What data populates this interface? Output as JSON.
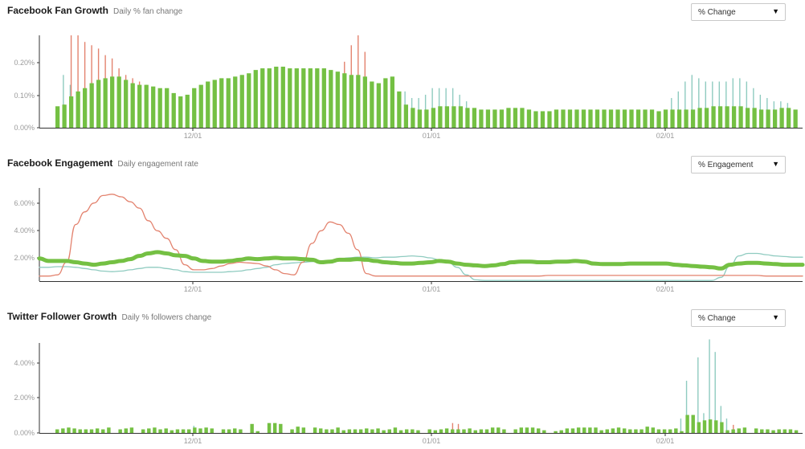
{
  "panels": [
    {
      "title": "Facebook Fan Growth",
      "subtitle": "Daily % fan change",
      "dropdown": "% Change"
    },
    {
      "title": "Facebook Engagement",
      "subtitle": "Daily engagement rate",
      "dropdown": "% Engagement"
    },
    {
      "title": "Twitter Follower Growth",
      "subtitle": "Daily % followers change",
      "dropdown": "% Change"
    }
  ],
  "icons": {
    "dropdown_arrow": "triangle-down-icon"
  },
  "colors": {
    "primary": "#74c043",
    "secondary": "#e3836f",
    "tertiary": "#8fcbc0",
    "axis": "#333333",
    "label": "#9a9a9a"
  },
  "chart_data": [
    {
      "type": "bar",
      "x_start": "11/03",
      "x_ticks": [
        "12/01",
        "01/01",
        "02/01"
      ],
      "y_ticks": [
        "0.00%",
        "0.10%",
        "0.20%"
      ],
      "ylim": [
        0,
        0.28
      ],
      "grid": false,
      "series": [
        {
          "values": [
            0.065,
            0.07,
            0.095,
            0.11,
            0.12,
            0.135,
            0.145,
            0.15,
            0.155,
            0.155,
            0.145,
            0.135,
            0.13,
            0.13,
            0.125,
            0.12,
            0.12,
            0.105,
            0.095,
            0.1,
            0.12,
            0.13,
            0.14,
            0.145,
            0.15,
            0.15,
            0.155,
            0.16,
            0.165,
            0.175,
            0.18,
            0.18,
            0.185,
            0.185,
            0.18,
            0.18,
            0.18,
            0.18,
            0.18,
            0.18,
            0.175,
            0.17,
            0.165,
            0.16,
            0.16,
            0.155,
            0.14,
            0.135,
            0.15,
            0.155,
            0.11,
            0.07,
            0.06,
            0.055,
            0.055,
            0.06,
            0.065,
            0.065,
            0.065,
            0.065,
            0.06,
            0.06,
            0.055,
            0.055,
            0.055,
            0.055,
            0.06,
            0.06,
            0.06,
            0.055,
            0.05,
            0.05,
            0.05,
            0.055,
            0.055,
            0.055,
            0.055,
            0.055,
            0.055,
            0.055,
            0.055,
            0.055,
            0.055,
            0.055,
            0.055,
            0.055,
            0.055,
            0.055,
            0.05,
            0.055,
            0.055,
            0.055,
            0.055,
            0.055,
            0.06,
            0.06,
            0.065,
            0.065,
            0.065,
            0.065,
            0.065,
            0.06,
            0.06,
            0.055,
            0.055,
            0.055,
            0.06,
            0.06,
            0.055
          ]
        },
        {
          "values": [
            0,
            0.07,
            0.28,
            0.28,
            0.26,
            0.25,
            0.24,
            0.22,
            0.21,
            0.18,
            0.16,
            0.15,
            0.14,
            0.13,
            0,
            0,
            0,
            0,
            0,
            0,
            0,
            0,
            0,
            0,
            0,
            0,
            0,
            0,
            0,
            0,
            0,
            0,
            0,
            0,
            0,
            0,
            0,
            0,
            0,
            0,
            0,
            0,
            0.2,
            0.25,
            0.28,
            0.23,
            0,
            0,
            0,
            0,
            0,
            0,
            0,
            0,
            0,
            0,
            0,
            0,
            0,
            0,
            0,
            0,
            0,
            0,
            0,
            0,
            0,
            0,
            0,
            0,
            0,
            0,
            0,
            0,
            0,
            0,
            0,
            0,
            0,
            0,
            0,
            0,
            0,
            0,
            0,
            0,
            0,
            0,
            0,
            0,
            0,
            0,
            0,
            0,
            0,
            0,
            0,
            0,
            0,
            0,
            0,
            0,
            0,
            0,
            0,
            0,
            0,
            0,
            0,
            0
          ]
        },
        {
          "values": [
            0,
            0.16,
            0.13,
            0,
            0,
            0,
            0,
            0,
            0,
            0,
            0,
            0,
            0,
            0,
            0,
            0,
            0,
            0,
            0,
            0,
            0,
            0,
            0,
            0,
            0,
            0,
            0,
            0,
            0,
            0,
            0,
            0,
            0,
            0,
            0,
            0,
            0,
            0,
            0,
            0,
            0,
            0,
            0,
            0,
            0,
            0,
            0,
            0,
            0,
            0,
            0,
            0.11,
            0.09,
            0.09,
            0.1,
            0.12,
            0.12,
            0.12,
            0.12,
            0.1,
            0.08,
            0,
            0,
            0,
            0,
            0,
            0,
            0,
            0,
            0,
            0,
            0,
            0,
            0,
            0,
            0,
            0,
            0,
            0,
            0,
            0,
            0,
            0,
            0,
            0,
            0,
            0,
            0,
            0,
            0,
            0.09,
            0.11,
            0.14,
            0.16,
            0.15,
            0.14,
            0.14,
            0.14,
            0.14,
            0.15,
            0.15,
            0.14,
            0.12,
            0.1,
            0.09,
            0.08,
            0.08,
            0.075,
            0
          ]
        }
      ]
    },
    {
      "type": "line",
      "x_start": "11/03",
      "x_ticks": [
        "12/01",
        "01/01",
        "02/01"
      ],
      "y_ticks": [
        "2.00%",
        "4.00%",
        "6.00%"
      ],
      "ylim": [
        0,
        7.4
      ],
      "grid": false,
      "series": [
        {
          "values": [
            1.8,
            1.6,
            1.6,
            1.6,
            1.5,
            1.4,
            1.3,
            1.4,
            1.5,
            1.6,
            1.75,
            2.0,
            2.2,
            2.3,
            2.2,
            2.05,
            2.0,
            1.8,
            1.6,
            1.55,
            1.55,
            1.6,
            1.7,
            1.8,
            1.75,
            1.8,
            1.85,
            1.8,
            1.8,
            1.75,
            1.7,
            1.5,
            1.55,
            1.7,
            1.7,
            1.75,
            1.7,
            1.6,
            1.5,
            1.45,
            1.4,
            1.4,
            1.45,
            1.5,
            1.6,
            1.55,
            1.4,
            1.3,
            1.25,
            1.2,
            1.25,
            1.35,
            1.5,
            1.55,
            1.55,
            1.5,
            1.5,
            1.55,
            1.55,
            1.6,
            1.55,
            1.4,
            1.35,
            1.35,
            1.35,
            1.4,
            1.4,
            1.4,
            1.4,
            1.4,
            1.3,
            1.25,
            1.2,
            1.15,
            1.1,
            1.0,
            1.3,
            1.4,
            1.45,
            1.45,
            1.4,
            1.35,
            1.3,
            1.3,
            1.3
          ]
        },
        {
          "values": [
            0.4,
            0.4,
            0.5,
            1.5,
            4.5,
            5.5,
            6.2,
            6.8,
            6.9,
            6.7,
            6.3,
            5.8,
            4.8,
            4.0,
            3.4,
            2.5,
            1.3,
            0.9,
            0.9,
            1.0,
            1.2,
            1.4,
            1.5,
            1.45,
            1.4,
            1.2,
            0.9,
            0.6,
            0.5,
            1.5,
            3.0,
            4.0,
            4.7,
            4.5,
            3.8,
            2.5,
            0.6,
            0.4,
            0.4,
            0.4,
            0.4,
            0.4,
            0.4,
            0.4,
            0.4,
            0.4,
            0.4,
            0.4,
            0.4,
            0.4,
            0.4,
            0.4,
            0.4,
            0.4,
            0.4,
            0.4,
            0.45,
            0.45,
            0.45,
            0.45,
            0.45,
            0.45,
            0.45,
            0.45,
            0.45,
            0.45,
            0.45,
            0.45,
            0.45,
            0.45,
            0.45,
            0.45,
            0.45,
            0.45,
            0.45,
            0.45,
            0.45,
            0.45,
            0.45,
            0.45,
            0.4,
            0.4,
            0.4,
            0.4,
            0.4
          ]
        },
        {
          "values": [
            1.1,
            1.1,
            1.15,
            1.15,
            1.1,
            1.0,
            0.9,
            0.8,
            0.75,
            0.8,
            0.9,
            1.0,
            1.1,
            1.1,
            1.0,
            0.9,
            0.75,
            0.7,
            0.7,
            0.7,
            0.7,
            0.75,
            0.8,
            0.9,
            1.0,
            1.1,
            1.3,
            1.4,
            1.45,
            1.5,
            1.55,
            1.6,
            1.65,
            1.75,
            1.85,
            1.9,
            1.9,
            1.85,
            1.9,
            1.9,
            1.95,
            2.0,
            1.95,
            1.85,
            1.7,
            1.5,
            1.1,
            0.5,
            0.1,
            0.05,
            0.05,
            0.05,
            0.05,
            0.05,
            0.05,
            0.05,
            0.05,
            0.05,
            0.05,
            0.05,
            0.05,
            0.05,
            0.05,
            0.05,
            0.05,
            0.05,
            0.05,
            0.05,
            0.05,
            0.05,
            0.05,
            0.05,
            0.05,
            0.05,
            0.05,
            0.3,
            1.2,
            2.0,
            2.2,
            2.2,
            2.1,
            2.0,
            1.95,
            1.9,
            1.9
          ]
        }
      ]
    },
    {
      "type": "bar",
      "x_start": "11/03",
      "x_ticks": [
        "12/01",
        "01/01",
        "02/01"
      ],
      "y_ticks": [
        "0.00%",
        "2.00%",
        "4.00%"
      ],
      "ylim": [
        0,
        5.0
      ],
      "grid": false,
      "series": [
        {
          "values": [
            0.2,
            0.25,
            0.3,
            0.25,
            0.2,
            0.2,
            0.2,
            0.25,
            0.2,
            0.3,
            0,
            0.2,
            0.25,
            0.3,
            0,
            0.2,
            0.25,
            0.3,
            0.2,
            0.25,
            0.15,
            0.2,
            0.2,
            0.2,
            0.3,
            0.25,
            0.3,
            0.25,
            0,
            0.2,
            0.2,
            0.25,
            0.2,
            0,
            0.5,
            0.1,
            0,
            0.55,
            0.55,
            0.5,
            0,
            0.2,
            0.35,
            0.3,
            0,
            0.3,
            0.25,
            0.2,
            0.2,
            0.3,
            0.15,
            0.2,
            0.2,
            0.2,
            0.25,
            0.2,
            0.25,
            0.15,
            0.2,
            0.3,
            0.15,
            0.2,
            0.2,
            0.15,
            0,
            0.2,
            0.15,
            0.2,
            0.25,
            0.2,
            0.2,
            0.2,
            0.25,
            0.15,
            0.2,
            0.2,
            0.3,
            0.3,
            0.2,
            0,
            0.2,
            0.3,
            0.3,
            0.3,
            0.25,
            0.15,
            0,
            0.1,
            0.15,
            0.25,
            0.25,
            0.3,
            0.3,
            0.3,
            0.3,
            0.15,
            0.2,
            0.25,
            0.3,
            0.25,
            0.2,
            0.2,
            0.2,
            0.35,
            0.3,
            0.2,
            0.2,
            0.2,
            0.25,
            0.1,
            1.0,
            1.0,
            0.6,
            0.7,
            0.75,
            0.7,
            0.6,
            0.15,
            0.2,
            0.25,
            0.3,
            0,
            0.25,
            0.2,
            0.2,
            0.15,
            0.2,
            0.2,
            0.2,
            0.15
          ]
        },
        {
          "values": [
            0,
            0,
            0,
            0,
            0,
            0,
            0,
            0,
            0,
            0,
            0,
            0,
            0,
            0,
            0,
            0,
            0,
            0,
            0,
            0,
            0,
            0,
            0,
            0,
            0,
            0,
            0,
            0,
            0,
            0,
            0,
            0,
            0,
            0,
            0,
            0,
            0,
            0,
            0,
            0,
            0,
            0,
            0,
            0,
            0,
            0,
            0,
            0,
            0,
            0,
            0,
            0,
            0,
            0,
            0,
            0,
            0,
            0,
            0,
            0,
            0,
            0,
            0,
            0,
            0,
            0,
            0,
            0,
            0,
            0.55,
            0.5,
            0,
            0,
            0,
            0,
            0,
            0,
            0,
            0,
            0,
            0,
            0,
            0,
            0,
            0,
            0,
            0,
            0,
            0,
            0,
            0,
            0,
            0,
            0,
            0,
            0,
            0,
            0,
            0,
            0,
            0,
            0,
            0,
            0,
            0,
            0,
            0,
            0,
            0,
            0,
            0,
            0,
            0,
            0,
            0,
            0,
            0,
            0,
            0.45,
            0,
            0,
            0,
            0,
            0,
            0,
            0,
            0,
            0,
            0,
            0,
            0
          ]
        },
        {
          "values": [
            0,
            0,
            0,
            0,
            0,
            0,
            0,
            0,
            0,
            0,
            0,
            0,
            0,
            0,
            0,
            0,
            0,
            0,
            0,
            0,
            0,
            0,
            0,
            0,
            0.4,
            0,
            0,
            0,
            0,
            0,
            0,
            0,
            0,
            0,
            0,
            0,
            0,
            0,
            0,
            0,
            0,
            0,
            0,
            0,
            0,
            0,
            0,
            0,
            0,
            0,
            0,
            0,
            0,
            0,
            0,
            0,
            0,
            0,
            0,
            0,
            0,
            0,
            0,
            0,
            0,
            0,
            0,
            0,
            0,
            0,
            0,
            0,
            0,
            0,
            0,
            0,
            0,
            0,
            0,
            0,
            0,
            0,
            0,
            0,
            0,
            0,
            0,
            0,
            0,
            0,
            0,
            0,
            0,
            0,
            0,
            0,
            0,
            0,
            0,
            0,
            0,
            0,
            0,
            0,
            0,
            0,
            0,
            0,
            0,
            0.8,
            2.9,
            0,
            4.2,
            1.1,
            5.2,
            4.5,
            1.5,
            0.8,
            0,
            0,
            0,
            0,
            0,
            0,
            0,
            0,
            0,
            0,
            0,
            0
          ]
        }
      ]
    }
  ]
}
